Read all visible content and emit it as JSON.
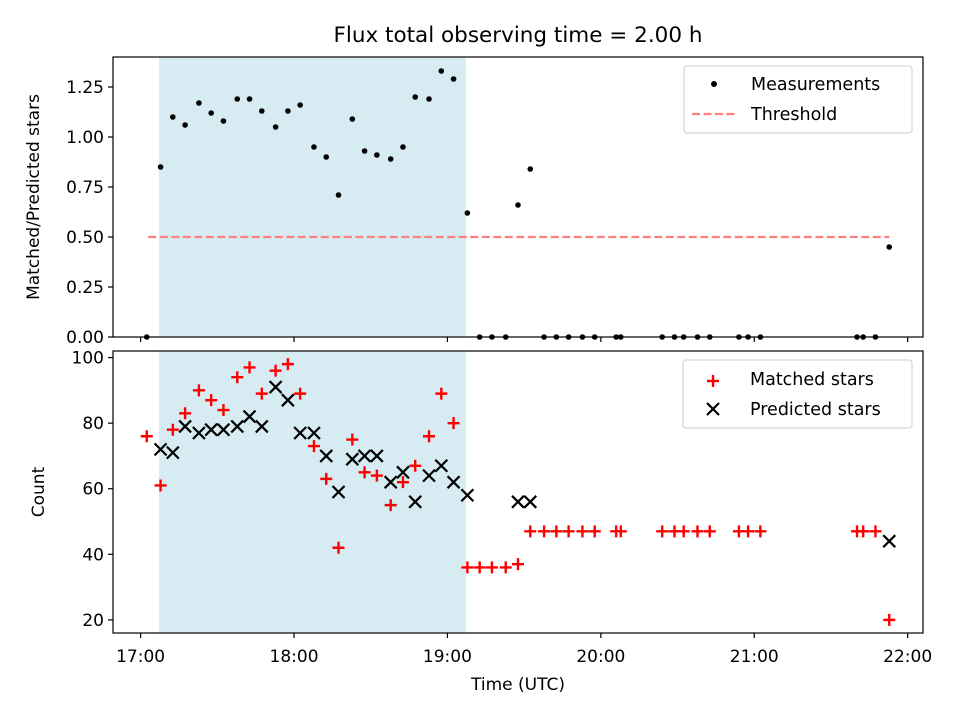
{
  "title": "Flux total observing time = 2.00 h",
  "chart_data": [
    {
      "type": "scatter",
      "ylabel": "Matched/Predicted stars",
      "xlim": [
        16.82,
        22.1
      ],
      "ylim": [
        0,
        1.4
      ],
      "yticks": [
        0,
        0.25,
        0.5,
        0.75,
        1.0,
        1.25
      ],
      "ytick_labels": [
        "0.00",
        "0.25",
        "0.50",
        "0.75",
        "1.00",
        "1.25"
      ],
      "shaded_region": [
        17.12,
        19.12
      ],
      "threshold": {
        "value": 0.5,
        "x_start": 17.05,
        "x_end": 21.88,
        "color": "#ff7f7f"
      },
      "legend": {
        "location": "top-right",
        "entries": [
          "Measurements",
          "Threshold"
        ]
      },
      "series": [
        {
          "name": "Measurements",
          "x": [
            17.04,
            17.13,
            17.21,
            17.29,
            17.38,
            17.46,
            17.54,
            17.63,
            17.71,
            17.79,
            17.88,
            17.96,
            18.04,
            18.13,
            18.21,
            18.29,
            18.38,
            18.46,
            18.54,
            18.63,
            18.71,
            18.79,
            18.88,
            18.96,
            19.04,
            19.13,
            19.21,
            19.29,
            19.38,
            19.46,
            19.54,
            19.63,
            19.71,
            19.79,
            19.88,
            19.96,
            20.1,
            20.13,
            20.4,
            20.48,
            20.54,
            20.63,
            20.71,
            20.9,
            20.96,
            21.04,
            21.67,
            21.71,
            21.79,
            21.88
          ],
          "y": [
            0.0,
            0.85,
            1.1,
            1.06,
            1.17,
            1.12,
            1.08,
            1.19,
            1.19,
            1.13,
            1.05,
            1.13,
            1.16,
            0.95,
            0.9,
            0.71,
            1.09,
            0.93,
            0.91,
            0.89,
            0.95,
            1.2,
            1.19,
            1.33,
            1.29,
            0.62,
            0.0,
            0.0,
            0.0,
            0.66,
            0.84,
            0.0,
            0.0,
            0.0,
            0.0,
            0.0,
            0.0,
            0.0,
            0.0,
            0.0,
            0.0,
            0.0,
            0.0,
            0.0,
            0.0,
            0.0,
            0.0,
            0.0,
            0.0,
            0.45
          ]
        }
      ]
    },
    {
      "type": "scatter",
      "xlabel": "Time (UTC)",
      "ylabel": "Count",
      "xlim": [
        16.82,
        22.1
      ],
      "ylim": [
        16,
        102
      ],
      "yticks": [
        20,
        40,
        60,
        80,
        100
      ],
      "xticks": [
        17,
        18,
        19,
        20,
        21,
        22
      ],
      "xtick_labels": [
        "17:00",
        "18:00",
        "19:00",
        "20:00",
        "21:00",
        "22:00"
      ],
      "shaded_region": [
        17.12,
        19.12
      ],
      "legend": {
        "location": "top-right",
        "entries": [
          "Matched stars",
          "Predicted stars"
        ]
      },
      "series": [
        {
          "name": "Matched stars",
          "marker": "+",
          "color": "#ff0000",
          "x": [
            17.04,
            17.13,
            17.21,
            17.29,
            17.38,
            17.46,
            17.54,
            17.63,
            17.71,
            17.79,
            17.88,
            17.96,
            18.04,
            18.13,
            18.21,
            18.29,
            18.38,
            18.46,
            18.54,
            18.63,
            18.71,
            18.79,
            18.88,
            18.96,
            19.04,
            19.13,
            19.21,
            19.29,
            19.38,
            19.46,
            19.54,
            19.63,
            19.71,
            19.79,
            19.88,
            19.96,
            20.1,
            20.13,
            20.4,
            20.48,
            20.54,
            20.63,
            20.71,
            20.9,
            20.96,
            21.04,
            21.67,
            21.71,
            21.79,
            21.88
          ],
          "y": [
            76,
            61,
            78,
            83,
            90,
            87,
            84,
            94,
            97,
            89,
            96,
            98,
            89,
            73,
            63,
            42,
            75,
            65,
            64,
            55,
            62,
            67,
            76,
            89,
            80,
            36,
            36,
            36,
            36,
            37,
            47,
            47,
            47,
            47,
            47,
            47,
            47,
            47,
            47,
            47,
            47,
            47,
            47,
            47,
            47,
            47,
            47,
            47,
            47,
            20
          ]
        },
        {
          "name": "Predicted stars",
          "marker": "x",
          "color": "#000000",
          "x": [
            17.13,
            17.21,
            17.29,
            17.38,
            17.46,
            17.54,
            17.63,
            17.71,
            17.79,
            17.88,
            17.96,
            18.04,
            18.13,
            18.21,
            18.29,
            18.38,
            18.46,
            18.54,
            18.63,
            18.71,
            18.79,
            18.88,
            18.96,
            19.04,
            19.13,
            19.46,
            19.54,
            21.88
          ],
          "y": [
            72,
            71,
            79,
            77,
            78,
            78,
            79,
            82,
            79,
            91,
            87,
            77,
            77,
            70,
            59,
            69,
            70,
            70,
            62,
            65,
            56,
            64,
            67,
            62,
            58,
            56,
            56,
            44
          ]
        }
      ]
    }
  ]
}
